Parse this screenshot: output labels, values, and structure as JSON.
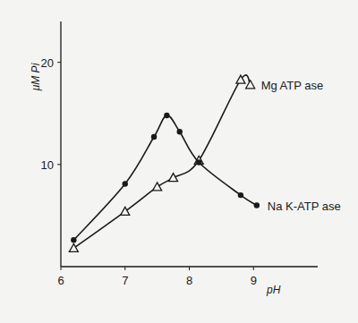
{
  "chart_data": {
    "type": "line",
    "x_label": "pH",
    "y_label": "μM Pi",
    "xlim": [
      6,
      10
    ],
    "xticks": [
      6,
      7,
      8,
      9
    ],
    "ylim": [
      0,
      24
    ],
    "yticks": [
      10,
      20
    ],
    "grid": false,
    "series": [
      {
        "name": "Mg ATP ase",
        "color": "#1a1a1a",
        "marker": "triangle",
        "line_style": "smooth",
        "x": [
          6.2,
          7.0,
          7.5,
          7.75,
          8.15,
          8.8,
          8.95
        ],
        "values": [
          1.8,
          5.4,
          7.8,
          8.7,
          10.4,
          18.3,
          17.8
        ]
      },
      {
        "name": "Na K-ATP ase",
        "color": "#1a1a1a",
        "marker": "circle",
        "line_style": "smooth",
        "x": [
          6.2,
          7.0,
          7.45,
          7.65,
          7.85,
          8.15,
          8.8,
          9.05
        ],
        "values": [
          2.6,
          8.1,
          12.7,
          14.8,
          13.2,
          10.2,
          7.0,
          6.0
        ]
      }
    ]
  }
}
